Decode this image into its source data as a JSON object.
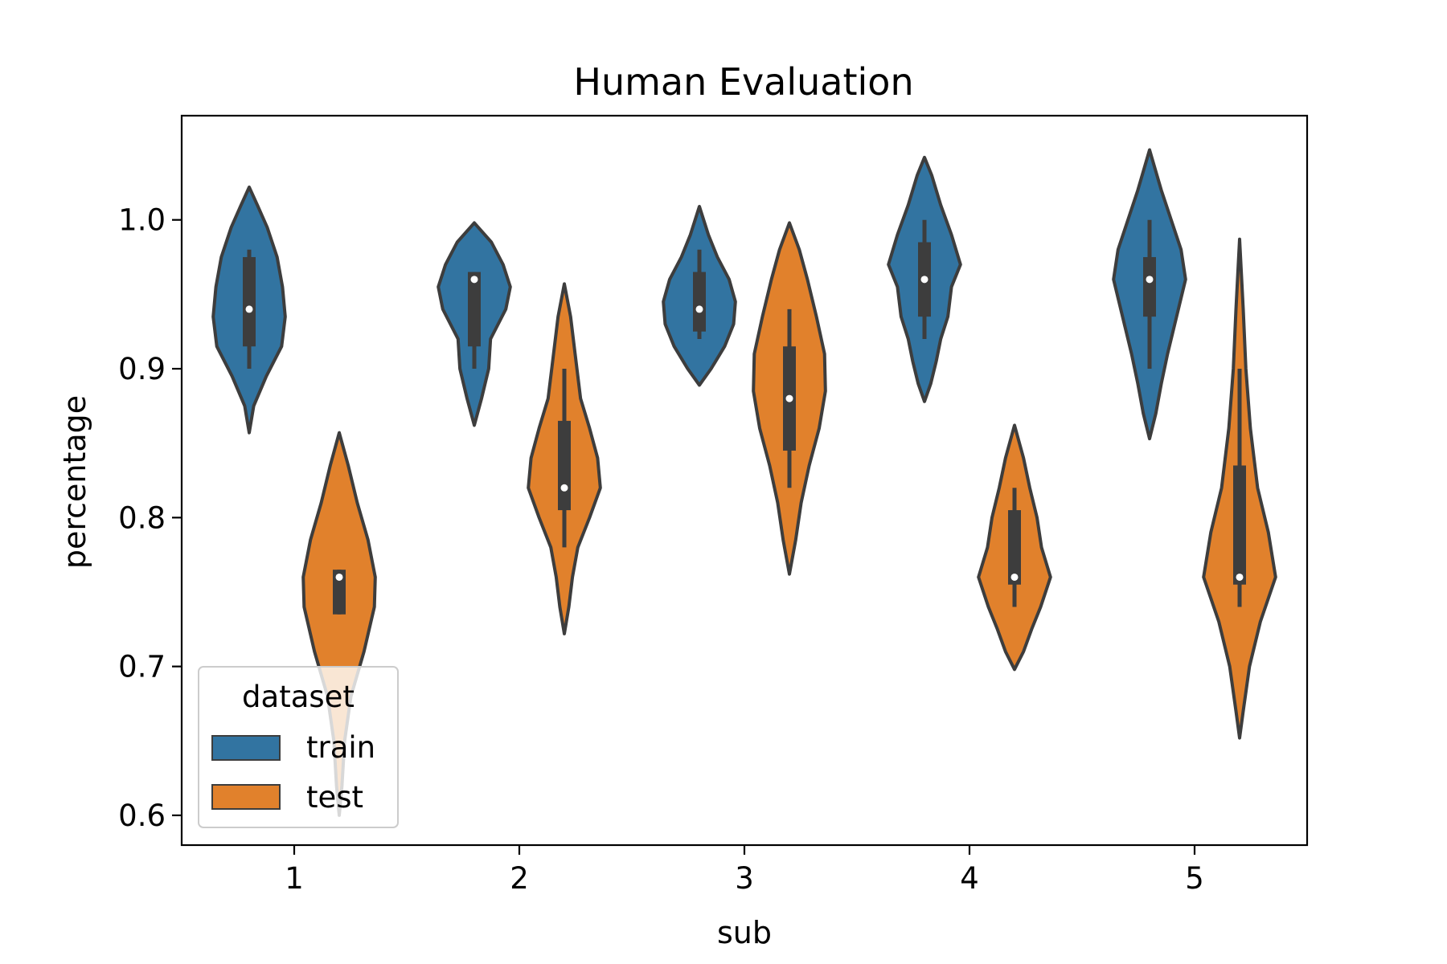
{
  "chart_data": {
    "type": "violin",
    "title": "Human Evaluation",
    "xlabel": "sub",
    "ylabel": "percentage",
    "categories": [
      "1",
      "2",
      "3",
      "4",
      "5"
    ],
    "ylim": [
      0.58,
      1.07
    ],
    "yticks": [
      "0.6",
      "0.7",
      "0.8",
      "0.9",
      "1.0"
    ],
    "grid": false,
    "legend": {
      "title": "dataset",
      "placement": "lower-left",
      "entries": [
        "train",
        "test"
      ]
    },
    "colors": {
      "train": "#3274a1",
      "test": "#e1812c",
      "box": "#3d3d3d",
      "edge": "#3d3d3d"
    },
    "series": [
      {
        "name": "train",
        "violins": [
          {
            "category": "1",
            "min": 0.857,
            "max": 1.022,
            "median": 0.94,
            "q1": 0.915,
            "q3": 0.975,
            "wlo": 0.9,
            "whi": 0.98,
            "profile": [
              [
                0.857,
                0.0
              ],
              [
                0.875,
                0.1
              ],
              [
                0.895,
                0.38
              ],
              [
                0.915,
                0.72
              ],
              [
                0.935,
                0.8
              ],
              [
                0.955,
                0.74
              ],
              [
                0.975,
                0.62
              ],
              [
                0.995,
                0.4
              ],
              [
                1.01,
                0.18
              ],
              [
                1.022,
                0.0
              ]
            ]
          },
          {
            "category": "2",
            "min": 0.862,
            "max": 0.998,
            "median": 0.96,
            "q1": 0.915,
            "q3": 0.965,
            "wlo": 0.9,
            "whi": 0.965,
            "profile": [
              [
                0.862,
                0.0
              ],
              [
                0.88,
                0.16
              ],
              [
                0.9,
                0.32
              ],
              [
                0.92,
                0.36
              ],
              [
                0.94,
                0.7
              ],
              [
                0.955,
                0.8
              ],
              [
                0.97,
                0.64
              ],
              [
                0.985,
                0.38
              ],
              [
                0.998,
                0.0
              ]
            ]
          },
          {
            "category": "3",
            "min": 0.889,
            "max": 1.009,
            "median": 0.94,
            "q1": 0.925,
            "q3": 0.965,
            "wlo": 0.92,
            "whi": 0.98,
            "profile": [
              [
                0.889,
                0.0
              ],
              [
                0.9,
                0.26
              ],
              [
                0.915,
                0.56
              ],
              [
                0.93,
                0.76
              ],
              [
                0.945,
                0.8
              ],
              [
                0.96,
                0.66
              ],
              [
                0.975,
                0.4
              ],
              [
                0.99,
                0.2
              ],
              [
                1.009,
                0.0
              ]
            ]
          },
          {
            "category": "4",
            "min": 0.878,
            "max": 1.042,
            "median": 0.96,
            "q1": 0.935,
            "q3": 0.985,
            "wlo": 0.92,
            "whi": 1.0,
            "profile": [
              [
                0.878,
                0.0
              ],
              [
                0.89,
                0.14
              ],
              [
                0.905,
                0.26
              ],
              [
                0.92,
                0.36
              ],
              [
                0.935,
                0.52
              ],
              [
                0.955,
                0.6
              ],
              [
                0.97,
                0.8
              ],
              [
                0.99,
                0.6
              ],
              [
                1.01,
                0.36
              ],
              [
                1.03,
                0.16
              ],
              [
                1.042,
                0.0
              ]
            ]
          },
          {
            "category": "5",
            "min": 0.853,
            "max": 1.047,
            "median": 0.96,
            "q1": 0.935,
            "q3": 0.975,
            "wlo": 0.9,
            "whi": 1.0,
            "profile": [
              [
                0.853,
                0.0
              ],
              [
                0.87,
                0.14
              ],
              [
                0.89,
                0.26
              ],
              [
                0.91,
                0.4
              ],
              [
                0.935,
                0.6
              ],
              [
                0.96,
                0.8
              ],
              [
                0.98,
                0.7
              ],
              [
                1.0,
                0.48
              ],
              [
                1.02,
                0.26
              ],
              [
                1.047,
                0.0
              ]
            ]
          }
        ]
      },
      {
        "name": "test",
        "violins": [
          {
            "category": "1",
            "min": 0.6,
            "max": 0.857,
            "median": 0.76,
            "q1": 0.735,
            "q3": 0.765,
            "wlo": 0.735,
            "whi": 0.765,
            "profile": [
              [
                0.6,
                0.0
              ],
              [
                0.62,
                0.06
              ],
              [
                0.65,
                0.12
              ],
              [
                0.68,
                0.26
              ],
              [
                0.71,
                0.55
              ],
              [
                0.74,
                0.78
              ],
              [
                0.76,
                0.8
              ],
              [
                0.785,
                0.64
              ],
              [
                0.81,
                0.4
              ],
              [
                0.835,
                0.2
              ],
              [
                0.857,
                0.0
              ]
            ]
          },
          {
            "category": "2",
            "min": 0.722,
            "max": 0.957,
            "median": 0.82,
            "q1": 0.805,
            "q3": 0.865,
            "wlo": 0.78,
            "whi": 0.9,
            "profile": [
              [
                0.722,
                0.0
              ],
              [
                0.74,
                0.1
              ],
              [
                0.76,
                0.18
              ],
              [
                0.78,
                0.3
              ],
              [
                0.8,
                0.56
              ],
              [
                0.82,
                0.8
              ],
              [
                0.84,
                0.74
              ],
              [
                0.86,
                0.56
              ],
              [
                0.88,
                0.36
              ],
              [
                0.91,
                0.24
              ],
              [
                0.935,
                0.14
              ],
              [
                0.957,
                0.0
              ]
            ]
          },
          {
            "category": "3",
            "min": 0.762,
            "max": 0.998,
            "median": 0.88,
            "q1": 0.845,
            "q3": 0.915,
            "wlo": 0.82,
            "whi": 0.94,
            "profile": [
              [
                0.762,
                0.0
              ],
              [
                0.785,
                0.14
              ],
              [
                0.81,
                0.26
              ],
              [
                0.835,
                0.44
              ],
              [
                0.86,
                0.66
              ],
              [
                0.885,
                0.8
              ],
              [
                0.91,
                0.78
              ],
              [
                0.935,
                0.6
              ],
              [
                0.96,
                0.4
              ],
              [
                0.98,
                0.22
              ],
              [
                0.998,
                0.0
              ]
            ]
          },
          {
            "category": "4",
            "min": 0.698,
            "max": 0.862,
            "median": 0.76,
            "q1": 0.755,
            "q3": 0.805,
            "wlo": 0.74,
            "whi": 0.82,
            "profile": [
              [
                0.698,
                0.0
              ],
              [
                0.71,
                0.2
              ],
              [
                0.725,
                0.38
              ],
              [
                0.74,
                0.58
              ],
              [
                0.76,
                0.8
              ],
              [
                0.78,
                0.6
              ],
              [
                0.8,
                0.5
              ],
              [
                0.82,
                0.34
              ],
              [
                0.84,
                0.2
              ],
              [
                0.862,
                0.0
              ]
            ]
          },
          {
            "category": "5",
            "min": 0.652,
            "max": 0.987,
            "median": 0.76,
            "q1": 0.755,
            "q3": 0.835,
            "wlo": 0.74,
            "whi": 0.9,
            "profile": [
              [
                0.652,
                0.0
              ],
              [
                0.67,
                0.08
              ],
              [
                0.7,
                0.22
              ],
              [
                0.73,
                0.46
              ],
              [
                0.76,
                0.8
              ],
              [
                0.79,
                0.64
              ],
              [
                0.82,
                0.4
              ],
              [
                0.86,
                0.24
              ],
              [
                0.9,
                0.14
              ],
              [
                0.94,
                0.08
              ],
              [
                0.987,
                0.0
              ]
            ]
          }
        ]
      }
    ]
  }
}
